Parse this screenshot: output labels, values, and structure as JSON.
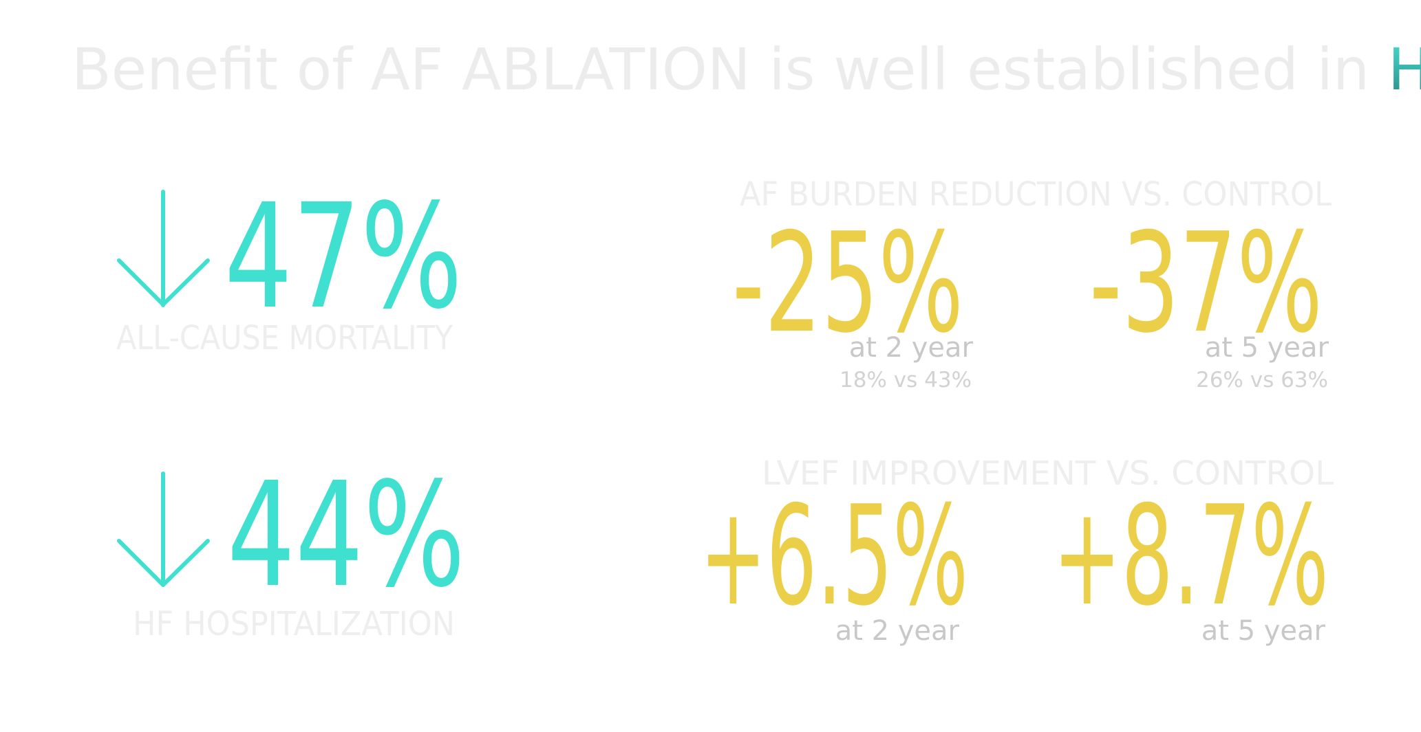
{
  "header": {
    "title": "Benefit of AF ABLATION is well established in ",
    "highlight": "HFrEF"
  },
  "outcomes": [
    {
      "value": "47%",
      "label": "ALL-CAUSE MORTALITY"
    },
    {
      "value": "44%",
      "label": "HF HOSPITALIZATION"
    }
  ],
  "sections": [
    {
      "heading": "AF BURDEN REDUCTION VS. CONTROL",
      "items": [
        {
          "value": "-25%",
          "period": "at 2 year",
          "detail": "18% vs 43%"
        },
        {
          "value": "-37%",
          "period": "at 5 year",
          "detail": "26% vs 63%"
        }
      ]
    },
    {
      "heading": "LVEF IMPROVEMENT VS. CONTROL",
      "items": [
        {
          "value": "+6.5%",
          "period": "at 2 year"
        },
        {
          "value": "+8.7%",
          "period": "at 5 year"
        }
      ]
    }
  ]
}
